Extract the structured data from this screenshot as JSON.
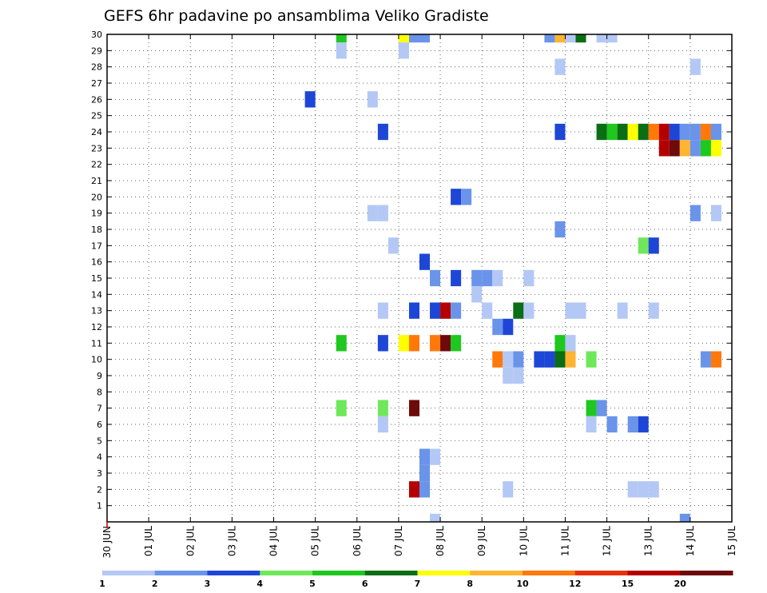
{
  "chart_data": {
    "type": "heatmap",
    "title": "GEFS 6hr padavine po ansamblima Veliko Gradiste",
    "x_start_label": "30 JUN",
    "x_date_labels": [
      "30 JUN",
      "01 JUL",
      "02 JUL",
      "03 JUL",
      "04 JUL",
      "05 JUL",
      "06 JUL",
      "07 JUL",
      "08 JUL",
      "09 JUL",
      "10 JUL",
      "11 JUL",
      "12 JUL",
      "13 JUL",
      "14 JUL",
      "15 JUL"
    ],
    "x_range_days": [
      0,
      15
    ],
    "x_step": "6 hours",
    "y_ticks": [
      1,
      2,
      3,
      4,
      5,
      6,
      7,
      8,
      9,
      10,
      11,
      12,
      13,
      14,
      15,
      16,
      17,
      18,
      19,
      20,
      21,
      22,
      23,
      24,
      25,
      26,
      27,
      28,
      29,
      30
    ],
    "y_range": [
      0,
      30
    ],
    "grid": "dotted",
    "legend": {
      "placement": "bottom",
      "labels": [
        "1",
        "2",
        "3",
        "4",
        "5",
        "6",
        "7",
        "8",
        "10",
        "12",
        "15",
        "20"
      ],
      "colors": [
        "#b4c8f5",
        "#6a94ea",
        "#1e46d6",
        "#6ee85a",
        "#1ec81e",
        "#0a6e14",
        "#ffff00",
        "#ffb432",
        "#ff780a",
        "#e6320a",
        "#b40000",
        "#6e0a0a"
      ]
    },
    "points": [
      {
        "day": 5.75,
        "member": 30,
        "level": 5
      },
      {
        "day": 7.25,
        "member": 30,
        "level": 7
      },
      {
        "day": 7.5,
        "member": 30,
        "level": 2
      },
      {
        "day": 7.75,
        "member": 30,
        "level": 2
      },
      {
        "day": 10.75,
        "member": 30,
        "level": 2
      },
      {
        "day": 11.0,
        "member": 30,
        "level": 8
      },
      {
        "day": 11.25,
        "member": 30,
        "level": 1
      },
      {
        "day": 11.5,
        "member": 30,
        "level": 6
      },
      {
        "day": 12.0,
        "member": 30,
        "level": 1
      },
      {
        "day": 12.25,
        "member": 30,
        "level": 1
      },
      {
        "day": 5.75,
        "member": 29,
        "level": 1
      },
      {
        "day": 7.25,
        "member": 29,
        "level": 1
      },
      {
        "day": 11.0,
        "member": 28,
        "level": 1
      },
      {
        "day": 14.25,
        "member": 28,
        "level": 1
      },
      {
        "day": 5.0,
        "member": 26,
        "level": 3
      },
      {
        "day": 6.5,
        "member": 26,
        "level": 1
      },
      {
        "day": 6.75,
        "member": 24,
        "level": 3
      },
      {
        "day": 11.0,
        "member": 24,
        "level": 3
      },
      {
        "day": 12.0,
        "member": 24,
        "level": 6
      },
      {
        "day": 12.25,
        "member": 24,
        "level": 5
      },
      {
        "day": 12.5,
        "member": 24,
        "level": 6
      },
      {
        "day": 12.75,
        "member": 24,
        "level": 7
      },
      {
        "day": 13.0,
        "member": 24,
        "level": 6
      },
      {
        "day": 13.25,
        "member": 24,
        "level": 10
      },
      {
        "day": 13.5,
        "member": 24,
        "level": 15
      },
      {
        "day": 13.75,
        "member": 24,
        "level": 3
      },
      {
        "day": 14.0,
        "member": 24,
        "level": 2
      },
      {
        "day": 14.25,
        "member": 24,
        "level": 2
      },
      {
        "day": 14.5,
        "member": 24,
        "level": 10
      },
      {
        "day": 14.75,
        "member": 24,
        "level": 2
      },
      {
        "day": 13.5,
        "member": 23,
        "level": 15
      },
      {
        "day": 13.75,
        "member": 23,
        "level": 20
      },
      {
        "day": 14.0,
        "member": 23,
        "level": 8
      },
      {
        "day": 14.25,
        "member": 23,
        "level": 2
      },
      {
        "day": 14.5,
        "member": 23,
        "level": 5
      },
      {
        "day": 14.75,
        "member": 23,
        "level": 7
      },
      {
        "day": 8.5,
        "member": 20,
        "level": 3
      },
      {
        "day": 8.75,
        "member": 20,
        "level": 2
      },
      {
        "day": 6.5,
        "member": 19,
        "level": 1
      },
      {
        "day": 6.75,
        "member": 19,
        "level": 1
      },
      {
        "day": 14.25,
        "member": 19,
        "level": 2
      },
      {
        "day": 14.75,
        "member": 19,
        "level": 1
      },
      {
        "day": 11.0,
        "member": 18,
        "level": 2
      },
      {
        "day": 7.0,
        "member": 17,
        "level": 1
      },
      {
        "day": 13.0,
        "member": 17,
        "level": 4
      },
      {
        "day": 13.25,
        "member": 17,
        "level": 3
      },
      {
        "day": 7.75,
        "member": 16,
        "level": 3
      },
      {
        "day": 8.0,
        "member": 15,
        "level": 2
      },
      {
        "day": 8.5,
        "member": 15,
        "level": 3
      },
      {
        "day": 9.0,
        "member": 15,
        "level": 2
      },
      {
        "day": 9.25,
        "member": 15,
        "level": 2
      },
      {
        "day": 9.5,
        "member": 15,
        "level": 1
      },
      {
        "day": 10.25,
        "member": 15,
        "level": 1
      },
      {
        "day": 9.0,
        "member": 14,
        "level": 1
      },
      {
        "day": 6.75,
        "member": 13,
        "level": 1
      },
      {
        "day": 7.5,
        "member": 13,
        "level": 3
      },
      {
        "day": 8.0,
        "member": 13,
        "level": 3
      },
      {
        "day": 8.25,
        "member": 13,
        "level": 15
      },
      {
        "day": 8.5,
        "member": 13,
        "level": 2
      },
      {
        "day": 9.25,
        "member": 13,
        "level": 1
      },
      {
        "day": 10.0,
        "member": 13,
        "level": 6
      },
      {
        "day": 10.25,
        "member": 13,
        "level": 1
      },
      {
        "day": 11.25,
        "member": 13,
        "level": 1
      },
      {
        "day": 11.5,
        "member": 13,
        "level": 1
      },
      {
        "day": 12.5,
        "member": 13,
        "level": 1
      },
      {
        "day": 13.25,
        "member": 13,
        "level": 1
      },
      {
        "day": 9.5,
        "member": 12,
        "level": 2
      },
      {
        "day": 9.75,
        "member": 12,
        "level": 3
      },
      {
        "day": 5.75,
        "member": 11,
        "level": 5
      },
      {
        "day": 6.75,
        "member": 11,
        "level": 3
      },
      {
        "day": 7.25,
        "member": 11,
        "level": 7
      },
      {
        "day": 7.5,
        "member": 11,
        "level": 10
      },
      {
        "day": 8.0,
        "member": 11,
        "level": 10
      },
      {
        "day": 8.25,
        "member": 11,
        "level": 20
      },
      {
        "day": 8.5,
        "member": 11,
        "level": 5
      },
      {
        "day": 11.0,
        "member": 11,
        "level": 5
      },
      {
        "day": 11.25,
        "member": 11,
        "level": 1
      },
      {
        "day": 9.5,
        "member": 10,
        "level": 10
      },
      {
        "day": 9.75,
        "member": 10,
        "level": 1
      },
      {
        "day": 10.0,
        "member": 10,
        "level": 2
      },
      {
        "day": 10.5,
        "member": 10,
        "level": 3
      },
      {
        "day": 10.75,
        "member": 10,
        "level": 3
      },
      {
        "day": 11.0,
        "member": 10,
        "level": 6
      },
      {
        "day": 11.25,
        "member": 10,
        "level": 8
      },
      {
        "day": 11.75,
        "member": 10,
        "level": 4
      },
      {
        "day": 14.5,
        "member": 10,
        "level": 2
      },
      {
        "day": 14.75,
        "member": 10,
        "level": 10
      },
      {
        "day": 9.75,
        "member": 9,
        "level": 1
      },
      {
        "day": 10.0,
        "member": 9,
        "level": 1
      },
      {
        "day": 5.75,
        "member": 7,
        "level": 4
      },
      {
        "day": 6.75,
        "member": 7,
        "level": 4
      },
      {
        "day": 7.5,
        "member": 7,
        "level": 20
      },
      {
        "day": 11.75,
        "member": 7,
        "level": 5
      },
      {
        "day": 12.0,
        "member": 7,
        "level": 2
      },
      {
        "day": 6.75,
        "member": 6,
        "level": 1
      },
      {
        "day": 11.75,
        "member": 6,
        "level": 1
      },
      {
        "day": 12.25,
        "member": 6,
        "level": 2
      },
      {
        "day": 12.75,
        "member": 6,
        "level": 2
      },
      {
        "day": 13.0,
        "member": 6,
        "level": 3
      },
      {
        "day": 7.75,
        "member": 4,
        "level": 2
      },
      {
        "day": 8.0,
        "member": 4,
        "level": 1
      },
      {
        "day": 7.75,
        "member": 3,
        "level": 2
      },
      {
        "day": 7.5,
        "member": 2,
        "level": 15
      },
      {
        "day": 7.75,
        "member": 2,
        "level": 2
      },
      {
        "day": 9.75,
        "member": 2,
        "level": 1
      },
      {
        "day": 12.75,
        "member": 2,
        "level": 1
      },
      {
        "day": 13.0,
        "member": 2,
        "level": 1
      },
      {
        "day": 13.25,
        "member": 2,
        "level": 1
      },
      {
        "day": 8.0,
        "member": 0,
        "level": 1
      },
      {
        "day": 14.0,
        "member": 0,
        "level": 2
      }
    ]
  }
}
